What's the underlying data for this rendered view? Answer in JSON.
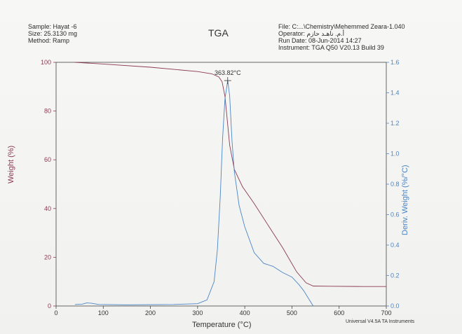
{
  "header": {
    "sample": "Sample: Hayat -6",
    "size": "Size:  25.3130 mg",
    "method": "Method: Ramp",
    "title": "TGA",
    "file": "File: C:...\\Chemistry\\Mehemmed  Zeara-1.040",
    "operator": "Operator: أ.م. ناهـد حازم",
    "run_date": "Run Date: 08-Jun-2014 14:27",
    "instrument": "Instrument: TGA Q50 V20.13 Build 39"
  },
  "footer": "Universal V4.5A TA Instruments",
  "colors": {
    "weight": "#8b3a55",
    "deriv": "#4a86c8",
    "axis": "#444444"
  },
  "chart_data": {
    "type": "line",
    "title": "TGA",
    "xlabel": "Temperature (°C)",
    "ylabel": "Weight (%)",
    "y2label": "Deriv. Weight (%/°C)",
    "xlim": [
      0,
      700
    ],
    "ylim": [
      0,
      100
    ],
    "y2lim": [
      0.0,
      1.6
    ],
    "x_ticks": [
      "0",
      "100",
      "200",
      "300",
      "400",
      "500",
      "600",
      "700"
    ],
    "y_ticks": [
      "0",
      "20",
      "40",
      "60",
      "80",
      "100"
    ],
    "y2_ticks": [
      "0.0",
      "0.2",
      "0.4",
      "0.6",
      "0.8",
      "1.0",
      "1.2",
      "1.4",
      "1.6"
    ],
    "annotation": {
      "label": "363.82°C",
      "x": 363.82,
      "y2": 1.48
    },
    "series": [
      {
        "axis": "left",
        "points": [
          [
            40,
            100
          ],
          [
            100,
            99.3
          ],
          [
            200,
            98
          ],
          [
            300,
            96.2
          ],
          [
            330,
            95.3
          ],
          [
            345,
            94
          ],
          [
            352,
            92
          ],
          [
            358,
            86
          ],
          [
            362,
            78
          ],
          [
            368,
            66
          ],
          [
            378,
            56
          ],
          [
            395,
            49
          ],
          [
            420,
            42
          ],
          [
            450,
            33
          ],
          [
            480,
            24
          ],
          [
            510,
            14
          ],
          [
            530,
            9.5
          ],
          [
            545,
            8.2
          ],
          [
            580,
            8.1
          ],
          [
            650,
            8
          ],
          [
            700,
            8
          ]
        ]
      },
      {
        "axis": "right",
        "points": [
          [
            40,
            0.01
          ],
          [
            55,
            0.012
          ],
          [
            65,
            0.02
          ],
          [
            75,
            0.018
          ],
          [
            90,
            0.01
          ],
          [
            150,
            0.008
          ],
          [
            250,
            0.01
          ],
          [
            300,
            0.015
          ],
          [
            320,
            0.04
          ],
          [
            335,
            0.16
          ],
          [
            342,
            0.37
          ],
          [
            348,
            0.72
          ],
          [
            353,
            1.1
          ],
          [
            358,
            1.36
          ],
          [
            363.82,
            1.48
          ],
          [
            368,
            1.38
          ],
          [
            373,
            1.08
          ],
          [
            378,
            0.88
          ],
          [
            388,
            0.66
          ],
          [
            400,
            0.52
          ],
          [
            420,
            0.35
          ],
          [
            440,
            0.28
          ],
          [
            460,
            0.26
          ],
          [
            480,
            0.22
          ],
          [
            500,
            0.19
          ],
          [
            515,
            0.14
          ],
          [
            525,
            0.1
          ],
          [
            535,
            0.05
          ],
          [
            545,
            0.0
          ]
        ]
      }
    ]
  }
}
